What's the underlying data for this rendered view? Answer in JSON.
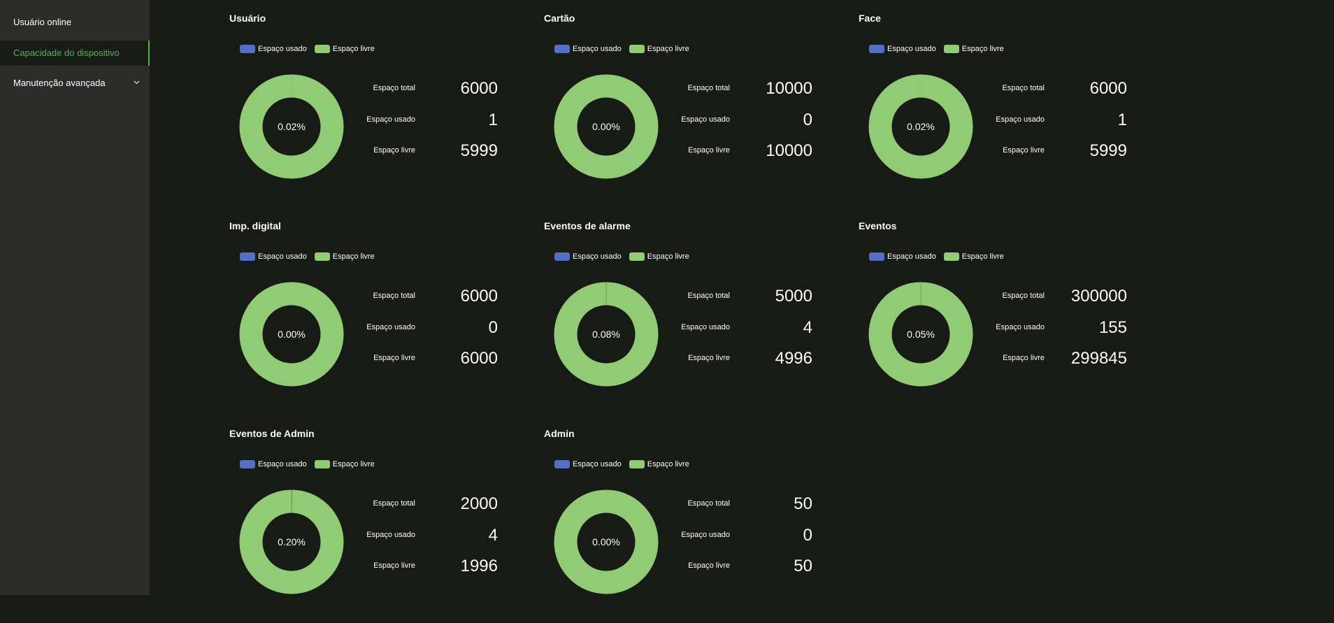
{
  "sidebar": {
    "items": [
      {
        "label": "Usuário online",
        "active": false
      },
      {
        "label": "Capacidade do dispositivo",
        "active": true
      },
      {
        "label": "Manutenção avançada",
        "active": false,
        "icon": "chevron-down-icon"
      }
    ]
  },
  "legend": {
    "used_label": "Espaço usado",
    "free_label": "Espaço livre",
    "used_color": "#5470c6",
    "free_color": "#91cc75"
  },
  "labels": {
    "total": "Espaço total",
    "used": "Espaço usado",
    "free": "Espaço livre"
  },
  "panels": [
    {
      "title": "Usuário",
      "percent": "0.02%",
      "total": "6000",
      "used": "1",
      "free": "5999"
    },
    {
      "title": "Cartão",
      "percent": "0.00%",
      "total": "10000",
      "used": "0",
      "free": "10000"
    },
    {
      "title": "Face",
      "percent": "0.02%",
      "total": "6000",
      "used": "1",
      "free": "5999"
    },
    {
      "title": "Imp. digital",
      "percent": "0.00%",
      "total": "6000",
      "used": "0",
      "free": "6000"
    },
    {
      "title": "Eventos de alarme",
      "percent": "0.08%",
      "total": "5000",
      "used": "4",
      "free": "4996"
    },
    {
      "title": "Eventos",
      "percent": "0.05%",
      "total": "300000",
      "used": "155",
      "free": "299845"
    },
    {
      "title": "Eventos de Admin",
      "percent": "0.20%",
      "total": "2000",
      "used": "4",
      "free": "1996"
    },
    {
      "title": "Admin",
      "percent": "0.00%",
      "total": "50",
      "used": "0",
      "free": "50"
    }
  ]
}
